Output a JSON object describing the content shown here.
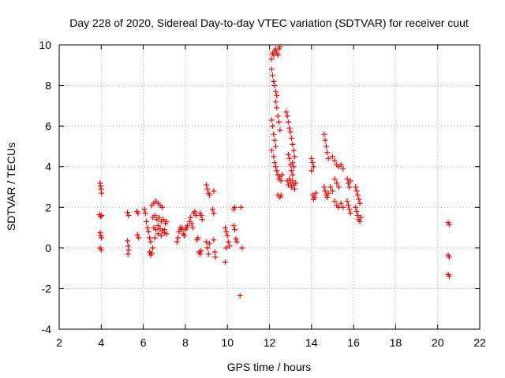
{
  "chart_data": {
    "type": "scatter",
    "title": "Day 228 of 2020, Sidereal Day-to-day VTEC variation (SDTVAR) for receiver cuut",
    "xlabel": "GPS time / hours",
    "ylabel": "SDTVAR / TECUs",
    "xlim": [
      2,
      22
    ],
    "ylim": [
      -4,
      10
    ],
    "xticks": [
      2,
      4,
      6,
      8,
      10,
      12,
      14,
      16,
      18,
      20,
      22
    ],
    "yticks": [
      -4,
      -2,
      0,
      2,
      4,
      6,
      8,
      10
    ],
    "xtick_labels": [
      "2",
      "4",
      "6",
      "8",
      "10",
      "12",
      "14",
      "16",
      "18",
      "20",
      "22"
    ],
    "ytick_labels": [
      "-4",
      "-2",
      "0",
      "2",
      "4",
      "6",
      "8",
      "10"
    ],
    "grid": true,
    "marker": "+",
    "color": "#ff0000",
    "series": [
      {
        "name": "SDTVAR",
        "points": [
          [
            3.95,
            3.2
          ],
          [
            3.97,
            3.05
          ],
          [
            3.99,
            2.9
          ],
          [
            4.01,
            2.7
          ],
          [
            3.92,
            1.65
          ],
          [
            3.97,
            1.55
          ],
          [
            4.02,
            1.6
          ],
          [
            3.95,
            0.75
          ],
          [
            3.98,
            0.6
          ],
          [
            4.01,
            0.5
          ],
          [
            3.95,
            0.0
          ],
          [
            4.0,
            -0.1
          ],
          [
            5.25,
            1.75
          ],
          [
            5.3,
            1.6
          ],
          [
            5.25,
            0.35
          ],
          [
            5.28,
            0.1
          ],
          [
            5.3,
            -0.1
          ],
          [
            5.27,
            -0.3
          ],
          [
            5.7,
            1.8
          ],
          [
            5.75,
            1.7
          ],
          [
            5.72,
            0.65
          ],
          [
            5.78,
            0.5
          ],
          [
            6.05,
            1.9
          ],
          [
            6.1,
            1.7
          ],
          [
            6.15,
            1.3
          ],
          [
            6.2,
            1.0
          ],
          [
            6.25,
            0.8
          ],
          [
            6.3,
            0.5
          ],
          [
            6.35,
            0.3
          ],
          [
            6.3,
            -0.2
          ],
          [
            6.35,
            -0.35
          ],
          [
            6.4,
            -0.25
          ],
          [
            6.45,
            0.0
          ],
          [
            6.4,
            2.1
          ],
          [
            6.5,
            2.2
          ],
          [
            6.6,
            2.3
          ],
          [
            6.7,
            2.2
          ],
          [
            6.8,
            2.1
          ],
          [
            6.9,
            2.0
          ],
          [
            6.45,
            1.5
          ],
          [
            6.55,
            1.6
          ],
          [
            6.65,
            1.4
          ],
          [
            6.75,
            1.5
          ],
          [
            6.85,
            1.3
          ],
          [
            6.95,
            1.4
          ],
          [
            7.05,
            1.2
          ],
          [
            6.5,
            1.0
          ],
          [
            6.6,
            0.9
          ],
          [
            6.7,
            1.1
          ],
          [
            6.8,
            0.95
          ],
          [
            6.9,
            0.85
          ],
          [
            7.0,
            0.9
          ],
          [
            7.1,
            0.7
          ],
          [
            6.55,
            0.5
          ],
          [
            6.7,
            0.7
          ],
          [
            6.85,
            0.6
          ],
          [
            7.0,
            0.75
          ],
          [
            7.1,
            1.3
          ],
          [
            7.6,
            0.3
          ],
          [
            7.65,
            0.5
          ],
          [
            7.7,
            0.8
          ],
          [
            7.75,
            1.0
          ],
          [
            7.8,
            0.9
          ],
          [
            7.85,
            1.0
          ],
          [
            7.9,
            0.7
          ],
          [
            7.95,
            0.6
          ],
          [
            8.0,
            0.9
          ],
          [
            8.05,
            1.0
          ],
          [
            8.1,
            1.1
          ],
          [
            8.2,
            1.3
          ],
          [
            8.25,
            1.5
          ],
          [
            8.3,
            1.2
          ],
          [
            8.35,
            1.0
          ],
          [
            8.4,
            1.7
          ],
          [
            8.45,
            1.8
          ],
          [
            8.5,
            1.6
          ],
          [
            8.55,
            0.4
          ],
          [
            8.6,
            0.5
          ],
          [
            8.65,
            -0.2
          ],
          [
            8.7,
            -0.3
          ],
          [
            8.75,
            -0.15
          ],
          [
            8.7,
            1.7
          ],
          [
            8.75,
            1.6
          ],
          [
            8.8,
            1.4
          ],
          [
            9.0,
            0.3
          ],
          [
            9.05,
            0.0
          ],
          [
            9.1,
            -0.3
          ],
          [
            9.15,
            0.2
          ],
          [
            9.0,
            3.1
          ],
          [
            9.05,
            2.9
          ],
          [
            9.1,
            2.7
          ],
          [
            9.15,
            2.6
          ],
          [
            9.35,
            2.8
          ],
          [
            9.3,
            1.9
          ],
          [
            9.35,
            1.7
          ],
          [
            9.35,
            0.4
          ],
          [
            9.4,
            -0.2
          ],
          [
            9.42,
            -0.45
          ],
          [
            9.9,
            1.0
          ],
          [
            9.95,
            0.8
          ],
          [
            10.0,
            0.6
          ],
          [
            10.05,
            0.3
          ],
          [
            10.1,
            0.1
          ],
          [
            9.95,
            0.0
          ],
          [
            9.9,
            -0.7
          ],
          [
            10.3,
            1.9
          ],
          [
            10.35,
            2.0
          ],
          [
            10.3,
            1.1
          ],
          [
            10.35,
            0.9
          ],
          [
            10.4,
            0.45
          ],
          [
            10.45,
            0.3
          ],
          [
            10.65,
            2.0
          ],
          [
            10.7,
            0.0
          ],
          [
            10.6,
            -2.35
          ],
          [
            12.1,
            9.3
          ],
          [
            12.15,
            9.6
          ],
          [
            12.2,
            9.5
          ],
          [
            12.25,
            9.7
          ],
          [
            12.3,
            9.8
          ],
          [
            12.35,
            9.6
          ],
          [
            12.4,
            9.5
          ],
          [
            12.45,
            9.8
          ],
          [
            12.5,
            9.9
          ],
          [
            12.1,
            8.8
          ],
          [
            12.15,
            8.5
          ],
          [
            12.2,
            8.2
          ],
          [
            12.25,
            8.0
          ],
          [
            12.3,
            7.7
          ],
          [
            12.35,
            7.5
          ],
          [
            12.3,
            7.2
          ],
          [
            12.35,
            6.9
          ],
          [
            12.4,
            6.5
          ],
          [
            12.45,
            6.2
          ],
          [
            12.5,
            5.8
          ],
          [
            12.1,
            6.3
          ],
          [
            12.15,
            6.0
          ],
          [
            12.2,
            5.6
          ],
          [
            12.25,
            5.3
          ],
          [
            12.3,
            5.0
          ],
          [
            12.1,
            4.8
          ],
          [
            12.2,
            4.5
          ],
          [
            12.25,
            4.2
          ],
          [
            12.3,
            4.0
          ],
          [
            12.35,
            3.8
          ],
          [
            12.4,
            3.6
          ],
          [
            12.45,
            3.4
          ],
          [
            12.5,
            3.5
          ],
          [
            12.55,
            3.3
          ],
          [
            12.6,
            3.6
          ],
          [
            12.4,
            2.6
          ],
          [
            12.5,
            2.5
          ],
          [
            12.55,
            2.6
          ],
          [
            12.8,
            6.7
          ],
          [
            12.85,
            6.5
          ],
          [
            12.9,
            6.2
          ],
          [
            12.95,
            5.9
          ],
          [
            13.0,
            5.7
          ],
          [
            13.05,
            5.4
          ],
          [
            13.1,
            5.1
          ],
          [
            13.15,
            4.8
          ],
          [
            13.2,
            4.5
          ],
          [
            13.1,
            4.2
          ],
          [
            13.15,
            4.0
          ],
          [
            12.9,
            4.6
          ],
          [
            12.95,
            4.4
          ],
          [
            13.0,
            4.1
          ],
          [
            13.05,
            3.8
          ],
          [
            13.1,
            3.6
          ],
          [
            12.85,
            3.3
          ],
          [
            12.9,
            3.1
          ],
          [
            12.95,
            3.4
          ],
          [
            13.0,
            3.2
          ],
          [
            13.05,
            3.0
          ],
          [
            13.1,
            3.3
          ],
          [
            13.15,
            3.1
          ],
          [
            13.2,
            2.9
          ],
          [
            13.25,
            3.2
          ],
          [
            14.0,
            4.4
          ],
          [
            14.05,
            4.2
          ],
          [
            14.1,
            4.0
          ],
          [
            14.0,
            3.8
          ],
          [
            14.05,
            2.6
          ],
          [
            14.1,
            2.4
          ],
          [
            14.15,
            2.5
          ],
          [
            14.2,
            2.7
          ],
          [
            14.6,
            5.6
          ],
          [
            14.65,
            5.3
          ],
          [
            14.7,
            5.0
          ],
          [
            14.75,
            4.7
          ],
          [
            14.8,
            4.4
          ],
          [
            14.6,
            3.0
          ],
          [
            14.65,
            2.8
          ],
          [
            14.7,
            2.6
          ],
          [
            14.75,
            2.5
          ],
          [
            14.8,
            2.7
          ],
          [
            14.9,
            3.0
          ],
          [
            15.0,
            2.8
          ],
          [
            15.0,
            4.5
          ],
          [
            15.1,
            4.3
          ],
          [
            15.2,
            4.1
          ],
          [
            15.3,
            4.0
          ],
          [
            15.4,
            4.1
          ],
          [
            15.5,
            3.9
          ],
          [
            15.1,
            3.4
          ],
          [
            15.2,
            3.2
          ],
          [
            15.3,
            3.0
          ],
          [
            15.1,
            2.3
          ],
          [
            15.2,
            2.1
          ],
          [
            15.3,
            2.0
          ],
          [
            15.4,
            2.2
          ],
          [
            15.5,
            2.0
          ],
          [
            15.7,
            3.4
          ],
          [
            15.75,
            3.2
          ],
          [
            15.8,
            3.0
          ],
          [
            15.85,
            3.3
          ],
          [
            15.7,
            2.3
          ],
          [
            15.75,
            2.1
          ],
          [
            15.8,
            1.9
          ],
          [
            15.85,
            1.7
          ],
          [
            16.1,
            3.0
          ],
          [
            16.15,
            2.8
          ],
          [
            16.2,
            2.6
          ],
          [
            16.25,
            2.4
          ],
          [
            16.3,
            2.2
          ],
          [
            16.1,
            2.0
          ],
          [
            16.15,
            1.8
          ],
          [
            16.2,
            1.6
          ],
          [
            16.25,
            1.4
          ],
          [
            16.3,
            1.3
          ],
          [
            16.35,
            1.5
          ],
          [
            20.5,
            1.25
          ],
          [
            20.55,
            1.15
          ],
          [
            20.5,
            -0.35
          ],
          [
            20.55,
            -0.45
          ],
          [
            20.5,
            -1.3
          ],
          [
            20.55,
            -1.4
          ]
        ]
      }
    ]
  }
}
